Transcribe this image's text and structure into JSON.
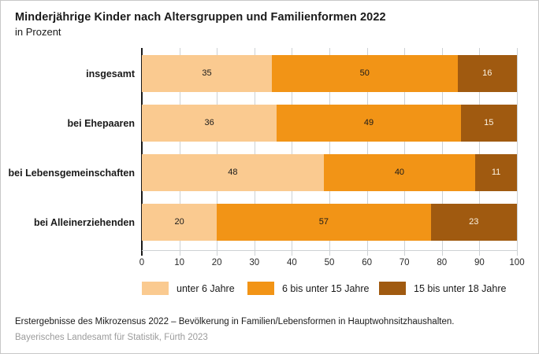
{
  "title": "Minderjährige Kinder nach Altersgruppen und Familienformen 2022",
  "subtitle": "in Prozent",
  "footer": {
    "source_note": "Erstergebnisse des Mikrozensus 2022 – Bevölkerung in Familien/Lebensformen in Hauptwohnsitzhaushalten.",
    "publisher": "Bayerisches Landesamt für Statistik, Fürth 2023"
  },
  "chart_data": {
    "type": "bar",
    "orientation": "horizontal",
    "stacked": true,
    "title": "Minderjährige Kinder nach Altersgruppen und Familienformen 2022",
    "subtitle": "in Prozent",
    "categories": [
      "insgesamt",
      "bei Ehepaaren",
      "bei Lebensgemeinschaften",
      "bei Alleinerziehenden"
    ],
    "series": [
      {
        "name": "unter 6 Jahre",
        "color": "#FACA90",
        "label_color": "#1a1a1a",
        "values": [
          35,
          36,
          48,
          20
        ]
      },
      {
        "name": "6 bis unter 15 Jahre",
        "color": "#F29416",
        "label_color": "#1a1a1a",
        "values": [
          50,
          49,
          40,
          57
        ]
      },
      {
        "name": "15 bis unter 18 Jahre",
        "color": "#A05A10",
        "label_color": "#FCF3E2",
        "values": [
          16,
          15,
          11,
          23
        ]
      }
    ],
    "x_ticks": [
      0,
      10,
      20,
      30,
      40,
      50,
      60,
      70,
      80,
      90,
      100
    ],
    "xlim": [
      0,
      100
    ],
    "xlabel": "",
    "ylabel": "",
    "grid": "vertical",
    "legend_position": "bottom"
  }
}
